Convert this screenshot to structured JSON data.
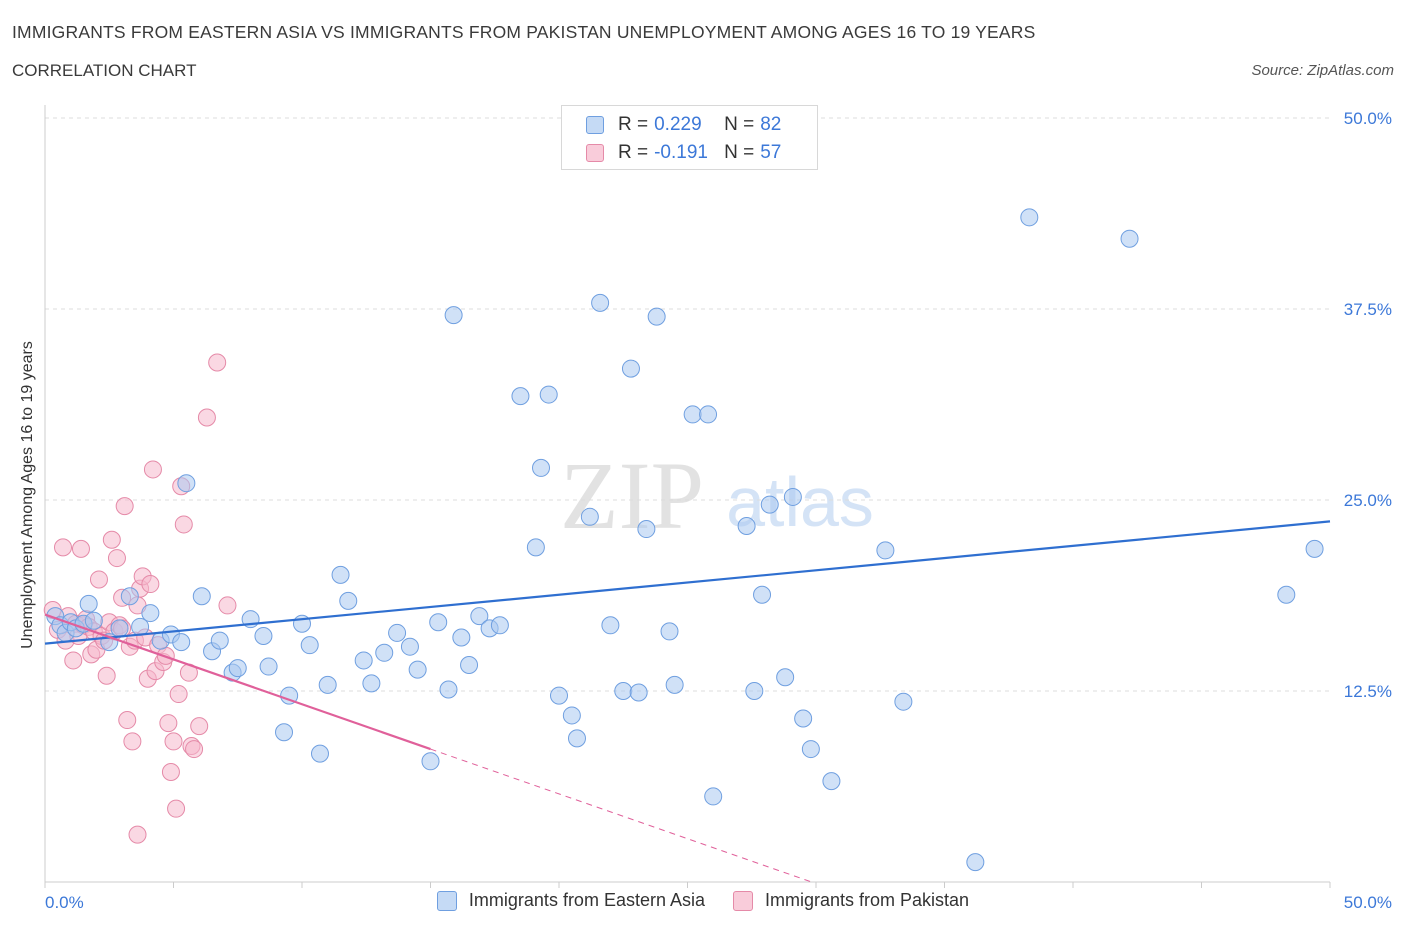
{
  "header": {
    "title": "IMMIGRANTS FROM EASTERN ASIA VS IMMIGRANTS FROM PAKISTAN UNEMPLOYMENT AMONG AGES 16 TO 19 YEARS",
    "subtitle": "CORRELATION CHART",
    "source": "Source: ZipAtlas.com"
  },
  "watermark": {
    "zip": "ZIP",
    "atlas": "atlas"
  },
  "colors": {
    "blue_fill": "#aac8f0",
    "blue_stroke": "#6f9fe0",
    "blue_line": "#2f6fd0",
    "pink_fill": "#f6b8cc",
    "pink_stroke": "#e58aa8",
    "pink_line": "#e0609a",
    "accent_text": "#3c78d8"
  },
  "legend": {
    "rows": [
      {
        "r_label": "R =",
        "r_value": "0.229",
        "n_label": "N =",
        "n_value": "82"
      },
      {
        "r_label": "R =",
        "r_value": "-0.191",
        "n_label": "N =",
        "n_value": "57"
      }
    ]
  },
  "chart_data": {
    "type": "scatter",
    "xlabel": "",
    "ylabel": "Unemployment Among Ages 16 to 19 years",
    "xlim": [
      0,
      50
    ],
    "ylim": [
      0,
      50
    ],
    "x_tick_labels": [
      "0.0%",
      "50.0%"
    ],
    "y_ticks": [
      {
        "value": 12.5,
        "label": "12.5%"
      },
      {
        "value": 25.0,
        "label": "25.0%"
      },
      {
        "value": 37.5,
        "label": "37.5%"
      },
      {
        "value": 50.0,
        "label": "50.0%"
      }
    ],
    "grid": "horizontal dashed",
    "series": [
      {
        "name": "Immigrants from Eastern Asia",
        "color": "#aac8f0",
        "trend": {
          "x": [
            0,
            50
          ],
          "y": [
            15.6,
            23.6
          ]
        },
        "points": [
          [
            0.4,
            17.4
          ],
          [
            0.6,
            16.8
          ],
          [
            0.8,
            16.3
          ],
          [
            1.0,
            17.0
          ],
          [
            1.2,
            16.6
          ],
          [
            1.5,
            16.9
          ],
          [
            1.7,
            18.2
          ],
          [
            1.9,
            17.1
          ],
          [
            2.5,
            15.7
          ],
          [
            2.9,
            16.6
          ],
          [
            3.3,
            18.7
          ],
          [
            3.7,
            16.7
          ],
          [
            4.1,
            17.6
          ],
          [
            4.5,
            15.8
          ],
          [
            4.9,
            16.2
          ],
          [
            5.3,
            15.7
          ],
          [
            5.5,
            26.1
          ],
          [
            6.1,
            18.7
          ],
          [
            6.5,
            15.1
          ],
          [
            6.8,
            15.8
          ],
          [
            7.3,
            13.7
          ],
          [
            7.5,
            14.0
          ],
          [
            8.0,
            17.2
          ],
          [
            8.5,
            16.1
          ],
          [
            8.7,
            14.1
          ],
          [
            9.5,
            12.2
          ],
          [
            9.3,
            9.8
          ],
          [
            10.0,
            16.9
          ],
          [
            10.3,
            15.5
          ],
          [
            10.7,
            8.4
          ],
          [
            11.0,
            12.9
          ],
          [
            11.5,
            20.1
          ],
          [
            11.8,
            18.4
          ],
          [
            12.4,
            14.5
          ],
          [
            12.7,
            13.0
          ],
          [
            13.2,
            15.0
          ],
          [
            13.7,
            16.3
          ],
          [
            14.2,
            15.4
          ],
          [
            14.5,
            13.9
          ],
          [
            15.0,
            7.9
          ],
          [
            15.3,
            17.0
          ],
          [
            15.7,
            12.6
          ],
          [
            15.9,
            37.1
          ],
          [
            16.2,
            16.0
          ],
          [
            16.5,
            14.2
          ],
          [
            16.9,
            17.4
          ],
          [
            17.3,
            16.6
          ],
          [
            17.7,
            16.8
          ],
          [
            18.5,
            31.8
          ],
          [
            19.1,
            21.9
          ],
          [
            19.3,
            27.1
          ],
          [
            19.6,
            31.9
          ],
          [
            20.0,
            12.2
          ],
          [
            20.5,
            10.9
          ],
          [
            20.7,
            9.4
          ],
          [
            21.2,
            23.9
          ],
          [
            21.6,
            37.9
          ],
          [
            22.0,
            16.8
          ],
          [
            22.5,
            12.5
          ],
          [
            22.8,
            33.6
          ],
          [
            23.1,
            12.4
          ],
          [
            23.4,
            23.1
          ],
          [
            23.8,
            37.0
          ],
          [
            24.3,
            16.4
          ],
          [
            24.5,
            12.9
          ],
          [
            25.2,
            30.6
          ],
          [
            25.8,
            30.6
          ],
          [
            26.0,
            5.6
          ],
          [
            27.3,
            23.3
          ],
          [
            27.6,
            12.5
          ],
          [
            27.9,
            18.8
          ],
          [
            28.2,
            24.7
          ],
          [
            28.8,
            13.4
          ],
          [
            29.1,
            25.2
          ],
          [
            29.5,
            10.7
          ],
          [
            29.8,
            8.7
          ],
          [
            30.6,
            6.6
          ],
          [
            32.7,
            21.7
          ],
          [
            33.4,
            11.8
          ],
          [
            36.2,
            1.3
          ],
          [
            38.3,
            43.5
          ],
          [
            42.2,
            42.1
          ],
          [
            48.3,
            18.8
          ],
          [
            49.4,
            21.8
          ]
        ]
      },
      {
        "name": "Immigrants from Pakistan",
        "color": "#f6b8cc",
        "trend": {
          "x": [
            0,
            15
          ],
          "y": [
            17.5,
            8.7
          ]
        },
        "points": [
          [
            0.3,
            17.8
          ],
          [
            0.5,
            16.5
          ],
          [
            0.7,
            21.9
          ],
          [
            0.8,
            15.8
          ],
          [
            0.9,
            17.4
          ],
          [
            1.1,
            14.5
          ],
          [
            1.2,
            16.9
          ],
          [
            1.3,
            16.1
          ],
          [
            1.4,
            21.8
          ],
          [
            1.5,
            16.8
          ],
          [
            1.6,
            17.2
          ],
          [
            1.7,
            16.7
          ],
          [
            1.8,
            14.9
          ],
          [
            1.9,
            16.4
          ],
          [
            2.0,
            15.2
          ],
          [
            2.1,
            19.8
          ],
          [
            2.2,
            16.1
          ],
          [
            2.3,
            15.8
          ],
          [
            2.4,
            13.5
          ],
          [
            2.5,
            17.0
          ],
          [
            2.6,
            22.4
          ],
          [
            2.7,
            16.4
          ],
          [
            2.8,
            21.2
          ],
          [
            2.9,
            16.8
          ],
          [
            3.0,
            18.6
          ],
          [
            3.0,
            16.6
          ],
          [
            3.1,
            24.6
          ],
          [
            3.2,
            10.6
          ],
          [
            3.3,
            15.4
          ],
          [
            3.4,
            9.2
          ],
          [
            3.5,
            15.8
          ],
          [
            3.6,
            18.1
          ],
          [
            3.6,
            3.1
          ],
          [
            3.7,
            19.2
          ],
          [
            3.8,
            20.0
          ],
          [
            3.9,
            16.0
          ],
          [
            4.0,
            13.3
          ],
          [
            4.1,
            19.5
          ],
          [
            4.2,
            27.0
          ],
          [
            4.3,
            13.8
          ],
          [
            4.4,
            15.5
          ],
          [
            4.6,
            14.4
          ],
          [
            4.7,
            14.8
          ],
          [
            4.8,
            10.4
          ],
          [
            4.9,
            7.2
          ],
          [
            5.0,
            9.2
          ],
          [
            5.1,
            4.8
          ],
          [
            5.2,
            12.3
          ],
          [
            5.3,
            25.9
          ],
          [
            5.4,
            23.4
          ],
          [
            5.6,
            13.7
          ],
          [
            5.7,
            8.9
          ],
          [
            5.8,
            8.7
          ],
          [
            6.0,
            10.2
          ],
          [
            6.3,
            30.4
          ],
          [
            6.7,
            34.0
          ],
          [
            7.1,
            18.1
          ]
        ]
      }
    ]
  }
}
